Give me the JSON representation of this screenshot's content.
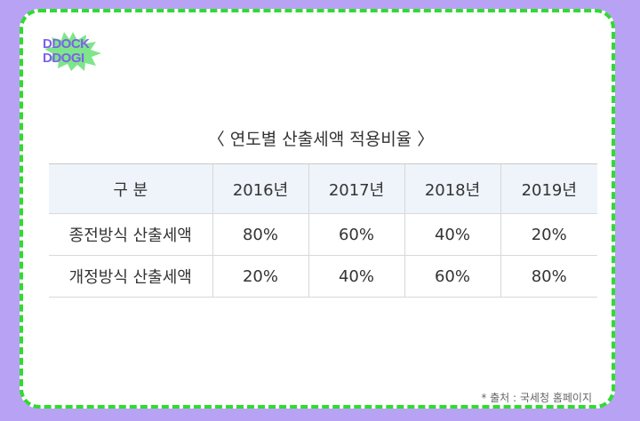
{
  "logo": {
    "line1": "DDOCK",
    "line2": "DDOGI"
  },
  "title": "〈  연도별 산출세액 적용비율  〉",
  "table": {
    "headers": [
      "구 분",
      "2016년",
      "2017년",
      "2018년",
      "2019년"
    ],
    "rows": [
      [
        "종전방식 산출세액",
        "80%",
        "60%",
        "40%",
        "20%"
      ],
      [
        "개정방식 산출세액",
        "20%",
        "40%",
        "60%",
        "80%"
      ]
    ]
  },
  "source": "* 출처 : 국세청 홈페이지",
  "colors": {
    "background": "#b8a2f3",
    "border": "#2edc2e",
    "header_bg": "#eef4fa",
    "logo": "#7b62e8",
    "logo_burst": "#7fe58a"
  }
}
